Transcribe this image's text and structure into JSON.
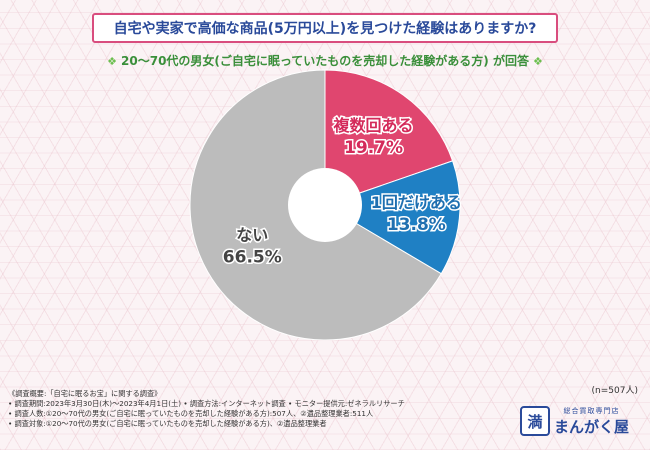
{
  "header": {
    "title": "自宅や実家で高価な商品(5万円以上)を見つけた経験はありますか?",
    "subtitle": "20～70代の男女(ご自宅に眠っていたものを売却した経験がある方) が回答",
    "diamond": "❖"
  },
  "chart_data": {
    "type": "pie",
    "title": "自宅や実家で高価な商品(5万円以上)を見つけた経験はありますか?",
    "slices": [
      {
        "label": "複数回ある",
        "value": 19.7,
        "display": "19.7%",
        "color": "#e0466f"
      },
      {
        "label": "1回だけある",
        "value": 13.8,
        "display": "13.8%",
        "color": "#1f80c4"
      },
      {
        "label": "ない",
        "value": 66.5,
        "display": "66.5%",
        "color": "#bcbcbc"
      }
    ]
  },
  "sample_note": "(n=507人)",
  "footer": {
    "lines": [
      "《調査概要:「自宅に眠るお宝」に関する調査》",
      "• 調査期間:2023年3月30日(木)～2023年4月1日(土)   • 調査方法:インターネット調査   • モニター提供元:ゼネラルリサーチ",
      "• 調査人数:①20～70代の男女(ご自宅に眠っていたものを売却した経験がある方):507人、②遺品整理業者:511人",
      "• 調査対象:①20～70代の男女(ご自宅に眠っていたものを売却した経験がある方)、②遺品整理業者"
    ]
  },
  "logo": {
    "mark": "満",
    "small": "総合買取専門店",
    "name": "まんがく屋"
  }
}
